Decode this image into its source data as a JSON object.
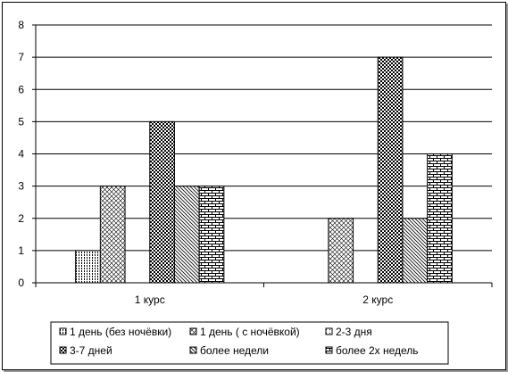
{
  "chart_data": {
    "type": "bar",
    "categories": [
      "1 курс",
      "2 курс"
    ],
    "series": [
      {
        "name": "1 день (без ночёвки)",
        "values": [
          1,
          0
        ],
        "pattern": "vdots"
      },
      {
        "name": "1 день ( с ночёвкой)",
        "values": [
          3,
          2
        ],
        "pattern": "cross"
      },
      {
        "name": "2-3 дня",
        "values": [
          0,
          0
        ],
        "pattern": "fine"
      },
      {
        "name": "3-7 дней",
        "values": [
          5,
          7
        ],
        "pattern": "checker"
      },
      {
        "name": "более недели",
        "values": [
          3,
          2
        ],
        "pattern": "diag"
      },
      {
        "name": "более 2х недель",
        "values": [
          3,
          4
        ],
        "pattern": "brick"
      }
    ],
    "title": "",
    "xlabel": "",
    "ylabel": "",
    "ylim": [
      0,
      8
    ],
    "yticks": [
      "0",
      "1",
      "2",
      "3",
      "4",
      "5",
      "6",
      "7",
      "8"
    ],
    "grid": true,
    "legend_position": "bottom"
  },
  "colors": {
    "bar_fill": "#ffffff",
    "ink": "#000000",
    "border": "#000000"
  }
}
